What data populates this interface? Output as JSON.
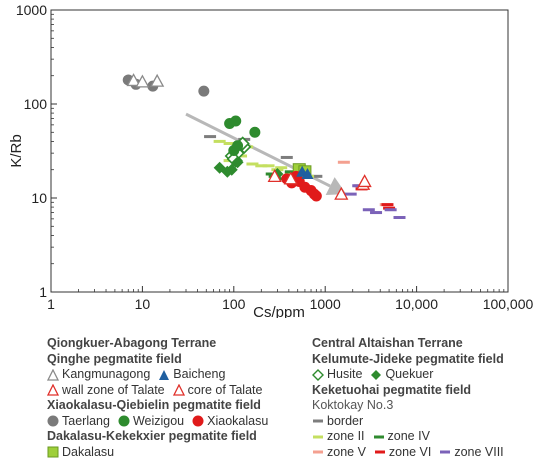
{
  "chart_data": {
    "type": "scatter",
    "xlabel": "Cs/ppm",
    "ylabel": "K/Rb",
    "xscale": "log",
    "yscale": "log",
    "xlim": [
      1,
      100000
    ],
    "ylim": [
      1,
      1000
    ],
    "xticks": [
      {
        "value": 1,
        "label": "1"
      },
      {
        "value": 10,
        "label": "10"
      },
      {
        "value": 100,
        "label": "100"
      },
      {
        "value": 1000,
        "label": "1000"
      },
      {
        "value": 10000,
        "label": "10,000"
      },
      {
        "value": 100000,
        "label": "100,000"
      }
    ],
    "yticks": [
      {
        "value": 1,
        "label": "1"
      },
      {
        "value": 10,
        "label": "10"
      },
      {
        "value": 100,
        "label": "100"
      },
      {
        "value": 1000,
        "label": "1000"
      }
    ],
    "trend_arrow": {
      "from": [
        30,
        78
      ],
      "to": [
        1700,
        11
      ],
      "color": "#b8b8b8"
    },
    "series": [
      {
        "name": "Kangmunagong",
        "marker": "triangle-open",
        "color": "#8a8a8a",
        "points": [
          [
            8.0,
            178
          ],
          [
            10.0,
            172
          ],
          [
            14.5,
            175
          ]
        ]
      },
      {
        "name": "Baicheng",
        "marker": "triangle-filled",
        "color": "#1f5fa0",
        "points": [
          [
            560,
            19
          ],
          [
            640,
            18
          ]
        ]
      },
      {
        "name": "wall zone of Talate",
        "marker": "triangle-open",
        "color": "#e0302a",
        "points": [
          [
            280,
            17
          ],
          [
            1500,
            11
          ],
          [
            2600,
            14
          ]
        ]
      },
      {
        "name": "core of Talate",
        "marker": "triangle-open",
        "color": "#e0302a",
        "points": [
          [
            420,
            16
          ],
          [
            2700,
            15
          ]
        ]
      },
      {
        "name": "Taerlang",
        "marker": "circle",
        "color": "#7a7a7a",
        "points": [
          [
            7.0,
            180
          ],
          [
            8.5,
            162
          ],
          [
            13.0,
            155
          ],
          [
            47,
            137
          ]
        ]
      },
      {
        "name": "Weizigou",
        "marker": "circle",
        "color": "#2e8b2e",
        "points": [
          [
            90,
            62
          ],
          [
            105,
            66
          ],
          [
            170,
            50
          ],
          [
            100,
            32
          ],
          [
            110,
            36
          ]
        ]
      },
      {
        "name": "Xiaokalasu",
        "marker": "circle",
        "color": "#e01a1a",
        "points": [
          [
            380,
            16
          ],
          [
            430,
            14.5
          ],
          [
            520,
            15
          ],
          [
            600,
            13
          ],
          [
            700,
            12
          ],
          [
            760,
            11
          ],
          [
            800,
            10.5
          ],
          [
            480,
            17
          ]
        ]
      },
      {
        "name": "Dakalasu",
        "marker": "square",
        "color": "#9ecf3a",
        "points": [
          [
            520,
            20
          ],
          [
            600,
            19
          ]
        ]
      },
      {
        "name": "Husite",
        "marker": "diamond-open",
        "color": "#2e8b2e",
        "points": [
          [
            95,
            28
          ],
          [
            105,
            25
          ],
          [
            110,
            30
          ],
          [
            130,
            35
          ],
          [
            125,
            38
          ],
          [
            100,
            26
          ]
        ]
      },
      {
        "name": "Quekuer",
        "marker": "diamond-filled",
        "color": "#2e8b2e",
        "points": [
          [
            70,
            21
          ],
          [
            85,
            19
          ],
          [
            95,
            20
          ],
          [
            110,
            24
          ],
          [
            300,
            18
          ]
        ]
      },
      {
        "name": "border",
        "marker": "dash",
        "color": "#7d7d7d",
        "points": [
          [
            55,
            45
          ],
          [
            130,
            42
          ],
          [
            380,
            27
          ],
          [
            800,
            17
          ]
        ]
      },
      {
        "name": "zone II",
        "marker": "dash",
        "color": "#c4df60",
        "points": [
          [
            70,
            40
          ],
          [
            90,
            38
          ],
          [
            110,
            37
          ],
          [
            140,
            35
          ],
          [
            160,
            23
          ],
          [
            200,
            22
          ],
          [
            240,
            22
          ],
          [
            90,
            25
          ],
          [
            120,
            28
          ],
          [
            300,
            20
          ],
          [
            420,
            18
          ],
          [
            500,
            18
          ],
          [
            650,
            17
          ],
          [
            330,
            21
          ]
        ]
      },
      {
        "name": "zone IV",
        "marker": "dash",
        "color": "#2f8a2f",
        "points": [
          [
            260,
            18
          ],
          [
            280,
            17
          ],
          [
            320,
            16
          ],
          [
            420,
            19
          ],
          [
            600,
            18
          ]
        ]
      },
      {
        "name": "zone V",
        "marker": "dash",
        "color": "#f4a090",
        "points": [
          [
            1600,
            24
          ],
          [
            2400,
            13.5
          ],
          [
            4600,
            8.5
          ]
        ]
      },
      {
        "name": "zone VI",
        "marker": "dash",
        "color": "#e01a1a",
        "points": [
          [
            2500,
            12.5
          ],
          [
            4800,
            8.5
          ],
          [
            550,
            14
          ],
          [
            5000,
            7.8
          ]
        ]
      },
      {
        "name": "zone VIII",
        "marker": "dash",
        "color": "#7b62b8",
        "points": [
          [
            1900,
            11
          ],
          [
            2300,
            13.5
          ],
          [
            3000,
            7.5
          ],
          [
            3600,
            7.0
          ],
          [
            6500,
            6.2
          ],
          [
            5200,
            7.5
          ]
        ]
      }
    ]
  },
  "legend": {
    "left": {
      "terrane1": "Qiongkuer-Abagong Terrane",
      "field1": "Qinghe pegmatite field",
      "kangmunagong": "Kangmunagong",
      "baicheng": "Baicheng",
      "wall_zone": "wall zone of Talate",
      "core": "core of Talate",
      "field2": "Xiaokalasu-Qiebielin pegmatite field",
      "taerlang": "Taerlang",
      "weizigou": "Weizigou",
      "xiaokalasu": "Xiaokalasu",
      "field3": "Dakalasu-Kekekxier pegmatite field",
      "dakalasu": "Dakalasu"
    },
    "right": {
      "terrane2": "Central Altaishan Terrane",
      "field4": "Kelumute-Jideke pegmatite field",
      "husite": "Husite",
      "quekuer": "Quekuer",
      "field5": "Keketuohai pegmatite field",
      "koktokay": "Koktokay No.3",
      "border": "border",
      "zone2": "zone II",
      "zone4": "zone IV",
      "zone5": "zone V",
      "zone6": "zone VI",
      "zone8": "zone VIII"
    }
  }
}
